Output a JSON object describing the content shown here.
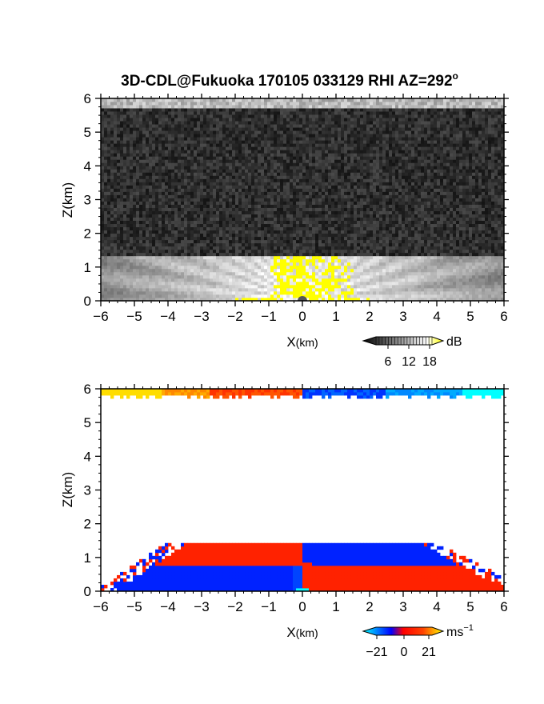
{
  "title": "3D-CDL@Fukuoka 170105 033129 RHI AZ=292",
  "title_superscript": "o",
  "chart_data": [
    {
      "type": "heatmap",
      "quantity": "reflectivity",
      "xlabel_main": "X",
      "xlabel_unit": "(km)",
      "ylabel": "Z(km)",
      "xlim": [
        -6,
        6
      ],
      "ylim": [
        0,
        6
      ],
      "x_ticks": [
        "−6",
        "−5",
        "−4",
        "−3",
        "−2",
        "−1",
        "0",
        "1",
        "2",
        "3",
        "4",
        "5",
        "6"
      ],
      "y_ticks": [
        "0",
        "1",
        "2",
        "3",
        "4",
        "5",
        "6"
      ],
      "colorbar": {
        "unit": "dB",
        "ticks": [
          "6",
          "12",
          "18"
        ],
        "range": [
          0,
          21
        ],
        "colors": [
          "#000000",
          "#ffffff",
          "#ffff00"
        ]
      },
      "features": {
        "boundary_layer_top_km": 1.35,
        "noise_top_km": 5.75,
        "high_echo_core_x_km": [
          -1.0,
          1.5
        ],
        "high_echo_core_z_km": [
          0,
          1.35
        ]
      }
    },
    {
      "type": "heatmap",
      "quantity": "radial_velocity",
      "xlabel_main": "X",
      "xlabel_unit": "(km)",
      "ylabel": "Z(km)",
      "xlim": [
        -6,
        6
      ],
      "ylim": [
        0,
        6
      ],
      "x_ticks": [
        "−6",
        "−5",
        "−4",
        "−3",
        "−2",
        "−1",
        "0",
        "1",
        "2",
        "3",
        "4",
        "5",
        "6"
      ],
      "y_ticks": [
        "0",
        "1",
        "2",
        "3",
        "4",
        "5",
        "6"
      ],
      "colorbar": {
        "unit": "ms",
        "unit_superscript": "−1",
        "ticks": [
          "−21",
          "0",
          "21"
        ],
        "range": [
          -21,
          21
        ],
        "colors": [
          "#00ffff",
          "#0000ff",
          "#ff0000",
          "#ffff00"
        ]
      },
      "features": {
        "lower_layer_top_km": 1.45,
        "shear_height_km": 0.8,
        "upper_band_z_km": [
          5.75,
          6.0
        ]
      }
    }
  ]
}
